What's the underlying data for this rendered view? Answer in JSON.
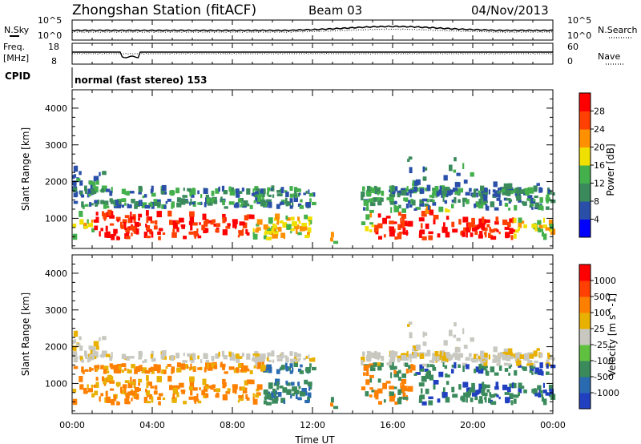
{
  "header": {
    "station": "Zhongshan Station (fitACF)",
    "beam": "Beam 03",
    "date": "04/Nov/2013"
  },
  "strips": {
    "noise": {
      "left_label": "N.Sky",
      "right_label": "N.Search",
      "left_ticks": [
        "10^5",
        "10^0"
      ],
      "right_ticks": [
        "10^5",
        "10^0"
      ]
    },
    "freq": {
      "left_label_1": "Freq.",
      "left_label_2": "[MHz]",
      "right_label": "Nave",
      "left_ticks": [
        "18",
        "8"
      ],
      "right_ticks": [
        "60",
        "0"
      ]
    },
    "cpid": {
      "label": "CPID",
      "value": "normal (fast stereo) 153"
    }
  },
  "colors": {
    "power": [
      "#0000ff",
      "#2a4fa8",
      "#3a8a5c",
      "#44b04c",
      "#f0e000",
      "#ff9000",
      "#ff4000",
      "#ff0000"
    ],
    "velocity": [
      "#2040c0",
      "#2a6ab0",
      "#3a8a5c",
      "#60c040",
      "#c8c8c0",
      "#e8b000",
      "#ff8000",
      "#ff4000",
      "#ff0000"
    ]
  },
  "chart_data": [
    {
      "type": "heatmap",
      "name": "power",
      "ylabel": "Slant Range [km]",
      "yticks": [
        "1000",
        "2000",
        "3000",
        "4000"
      ],
      "ylim": [
        180,
        4500
      ],
      "xlim": [
        "00:00",
        "24:00"
      ],
      "colorbar_label": "Power [dB]",
      "colorbar_ticks": [
        "28",
        "24",
        "20",
        "16",
        "12",
        "8",
        "4"
      ],
      "colorbar_range": [
        0,
        32
      ]
    },
    {
      "type": "heatmap",
      "name": "velocity",
      "ylabel": "Slant Range [km]",
      "yticks": [
        "1000",
        "2000",
        "3000",
        "4000"
      ],
      "ylim": [
        180,
        4500
      ],
      "xlabel": "Time UT",
      "xticks": [
        "00:00",
        "04:00",
        "08:00",
        "12:00",
        "16:00",
        "20:00",
        "00:00"
      ],
      "xlim": [
        "00:00",
        "24:00"
      ],
      "colorbar_label": "Velocity [m s^-1]",
      "colorbar_ticks": [
        "1000",
        "500",
        "100",
        "25",
        "-25",
        "-100",
        "-500",
        "-1000"
      ]
    }
  ]
}
